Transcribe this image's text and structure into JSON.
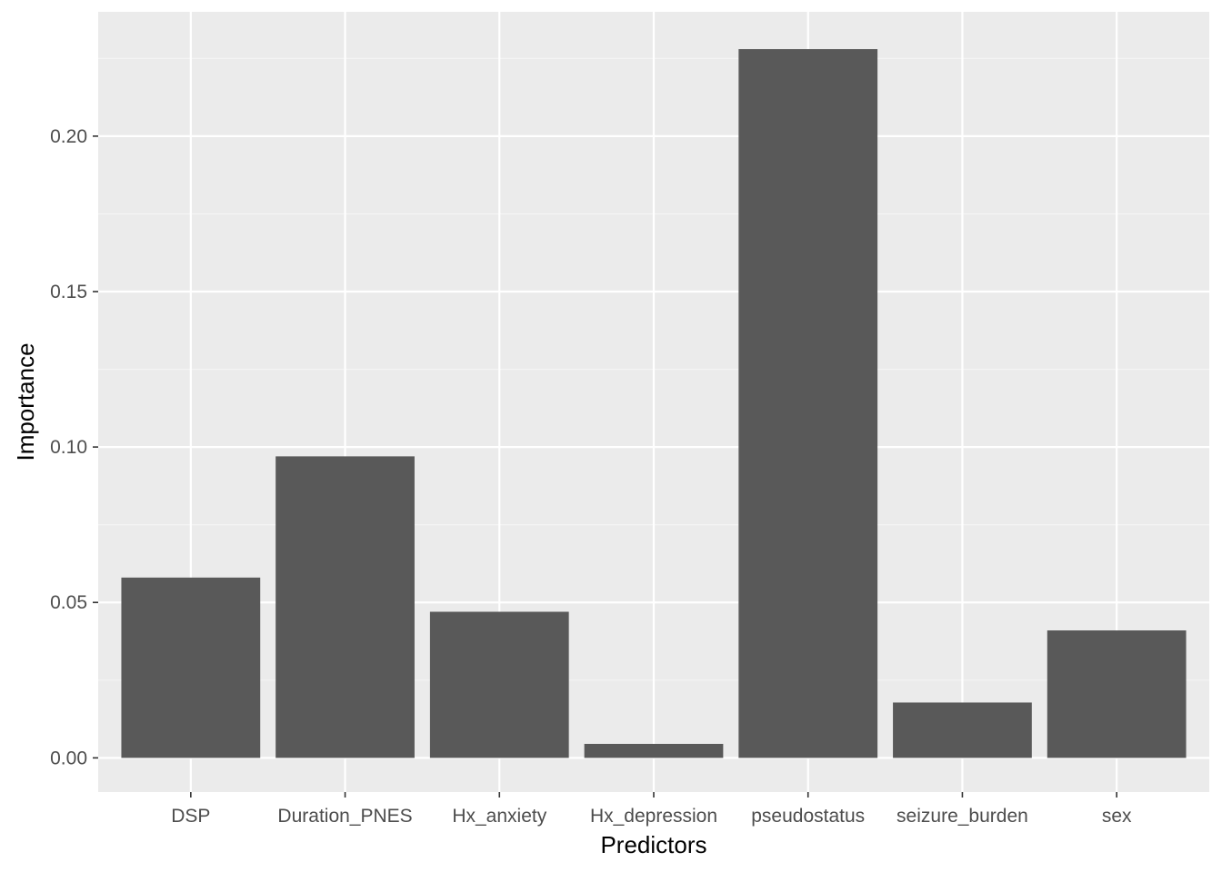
{
  "chart_data": {
    "type": "bar",
    "title": "",
    "xlabel": "Predictors",
    "ylabel": "Importance",
    "categories": [
      "DSP",
      "Duration_PNES",
      "Hx_anxiety",
      "Hx_depression",
      "pseudostatus",
      "seizure_burden",
      "sex"
    ],
    "values": [
      0.058,
      0.097,
      0.047,
      0.0045,
      0.228,
      0.0178,
      0.041
    ],
    "ylim": [
      -0.011,
      0.24
    ],
    "yticks": [
      0.0,
      0.05,
      0.1,
      0.15,
      0.2
    ],
    "ytick_labels": [
      "0.00",
      "0.05",
      "0.10",
      "0.15",
      "0.20"
    ],
    "grid": true,
    "legend": "none",
    "colors": {
      "bar": "#595959",
      "panel_background": "#ebebeb",
      "grid_major": "#ffffff",
      "grid_minor": "#f5f5f5",
      "tick_text": "#4d4d4d",
      "tick_mark": "#333333"
    }
  }
}
